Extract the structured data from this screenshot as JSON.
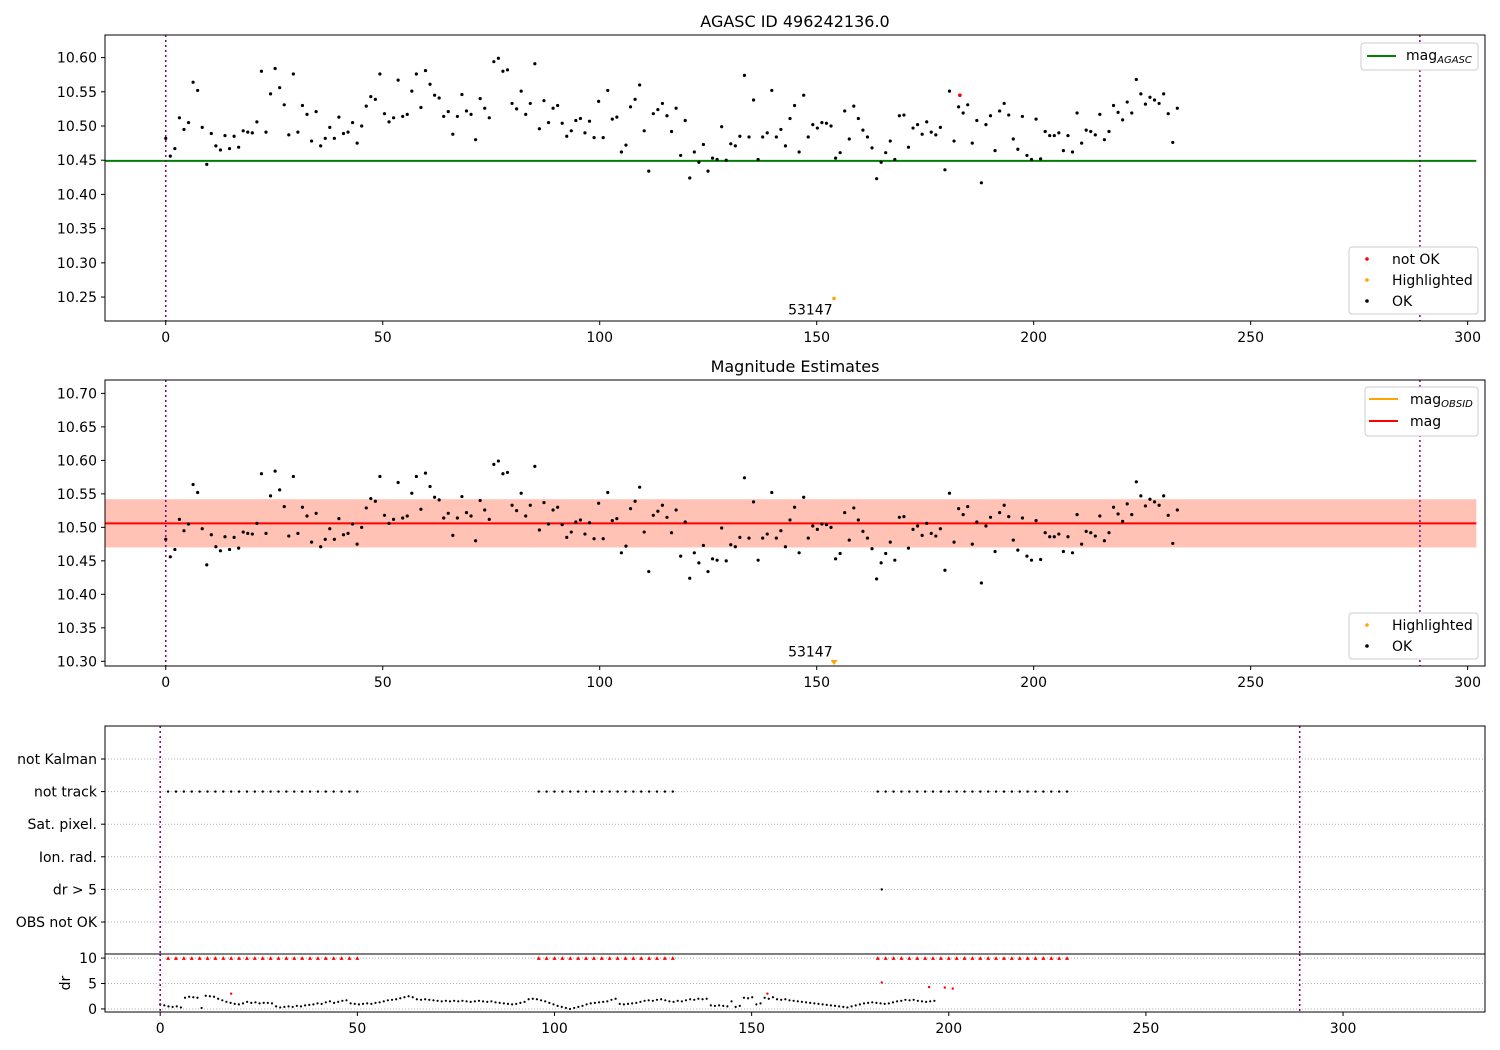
{
  "chart_data": [
    {
      "type": "scatter",
      "title": "AGASC ID 496242136.0",
      "xlim": [
        -14,
        304
      ],
      "ylim": [
        10.215,
        10.633
      ],
      "xticks": [
        0,
        50,
        100,
        150,
        200,
        250,
        300
      ],
      "yticks": [
        10.25,
        10.3,
        10.35,
        10.4,
        10.45,
        10.5,
        10.55,
        10.6
      ],
      "ytick_labels": [
        "10.25",
        "10.30",
        "10.35",
        "10.40",
        "10.45",
        "10.50",
        "10.55",
        "10.60"
      ],
      "vlines": [
        0,
        289
      ],
      "hline": {
        "y": 10.449,
        "x_range": [
          -14,
          304
        ],
        "color": "#008000"
      },
      "annotation": {
        "text": "53147",
        "x": 149,
        "y": 10.23
      },
      "legend_lines": [
        {
          "label": "mag",
          "sub": "AGASC",
          "color": "#008000"
        }
      ],
      "legend_points": [
        {
          "label": "not OK",
          "color": "#ff0000"
        },
        {
          "label": "Highlighted",
          "color": "#ffa500"
        },
        {
          "label": "OK",
          "color": "#000000"
        }
      ],
      "series": [
        {
          "name": "not OK",
          "color": "#ff0000",
          "points": [
            [
              183,
              10.545
            ]
          ]
        },
        {
          "name": "Highlighted",
          "color": "#ffa500",
          "points": [
            [
              154,
              10.248
            ]
          ]
        }
      ]
    },
    {
      "type": "scatter",
      "title": "Magnitude Estimates",
      "xlim": [
        -14,
        304
      ],
      "ylim": [
        10.293,
        10.72
      ],
      "xticks": [
        0,
        50,
        100,
        150,
        200,
        250,
        300
      ],
      "yticks": [
        10.3,
        10.35,
        10.4,
        10.45,
        10.5,
        10.55,
        10.6,
        10.65,
        10.7
      ],
      "ytick_labels": [
        "10.30",
        "10.35",
        "10.40",
        "10.45",
        "10.50",
        "10.55",
        "10.60",
        "10.65",
        "10.70"
      ],
      "vlines": [
        0,
        289
      ],
      "mag_line": {
        "y": 10.506,
        "color": "#ff0000"
      },
      "bands": [
        {
          "y0": 10.47,
          "y1": 10.542,
          "color": "#ffc0cb",
          "opacity": 0.5
        },
        {
          "y0": 10.47,
          "y1": 10.542,
          "color": "#ffa07a",
          "opacity": 0.45
        }
      ],
      "annotation": {
        "text": "53147",
        "x": 149,
        "y": 10.31
      },
      "highlight_marker": {
        "x": 154,
        "y": 10.299,
        "color": "#ffa500"
      },
      "legend_lines": [
        {
          "label": "mag",
          "sub": "OBSID",
          "color": "#ffa500"
        },
        {
          "label": "mag",
          "sub": "",
          "color": "#ff0000"
        }
      ],
      "legend_points": [
        {
          "label": "Highlighted",
          "color": "#ffa500"
        },
        {
          "label": "OK",
          "color": "#000000"
        }
      ]
    },
    {
      "type": "scatter",
      "title": "",
      "xlim": [
        -14,
        336
      ],
      "xticks": [
        0,
        50,
        100,
        150,
        200,
        250,
        300
      ],
      "vlines": [
        0,
        289
      ],
      "categories": [
        "not Kalman",
        "not track",
        "Sat. pixel.",
        "Ion. rad.",
        "dr > 5",
        "OBS not OK"
      ],
      "flag_points": {
        "not track": [
          [
            2,
            51
          ],
          [
            96,
            131
          ],
          [
            182,
            231
          ]
        ],
        "dr > 5": [
          183
        ]
      },
      "dr_panel": {
        "ylabel": "dr",
        "ylim": [
          -0.6,
          10.8
        ],
        "yticks": [
          0,
          5,
          10
        ],
        "ytick_labels": [
          "0",
          "5",
          "10"
        ],
        "capped_value": 10,
        "capped_ranges": [
          [
            2,
            51
          ],
          [
            96,
            131
          ],
          [
            182,
            231
          ]
        ],
        "red_points": [
          [
            18,
            3.0
          ],
          [
            154,
            3.0
          ],
          [
            183,
            5.2
          ],
          [
            195,
            4.3
          ],
          [
            199,
            4.2
          ],
          [
            201,
            4.0
          ]
        ]
      }
    }
  ],
  "mag_series": [
    10.482,
    10.456,
    10.467,
    10.512,
    10.495,
    10.505,
    10.564,
    10.552,
    10.498,
    10.444,
    10.489,
    10.471,
    10.465,
    10.486,
    10.467,
    10.485,
    10.469,
    10.493,
    10.491,
    10.49,
    10.506,
    10.58,
    10.491,
    10.547,
    10.584,
    10.556,
    10.531,
    10.487,
    10.576,
    10.491,
    10.53,
    10.517,
    10.478,
    10.521,
    10.471,
    10.482,
    10.498,
    10.482,
    10.513,
    10.489,
    10.491,
    10.505,
    10.475,
    10.5,
    10.529,
    10.543,
    10.539,
    10.576,
    10.518,
    10.506,
    10.512,
    10.567,
    10.514,
    10.517,
    10.551,
    10.576,
    10.527,
    10.581,
    10.561,
    10.545,
    10.541,
    10.514,
    10.521,
    10.488,
    10.514,
    10.546,
    10.522,
    10.517,
    10.48,
    10.54,
    10.526,
    10.512,
    10.594,
    10.599,
    10.58,
    10.582,
    10.533,
    10.525,
    10.551,
    10.517,
    10.533,
    10.591,
    10.496,
    10.537,
    10.505,
    10.526,
    10.53,
    10.504,
    10.485,
    10.493,
    10.508,
    10.511,
    10.49,
    10.507,
    10.483,
    10.536,
    10.483,
    10.552,
    10.51,
    10.513,
    10.462,
    10.472,
    10.528,
    10.539,
    10.56,
    10.493,
    10.434,
    10.518,
    10.524,
    10.533,
    10.515,
    10.492,
    10.526,
    10.457,
    10.508,
    10.424,
    10.462,
    10.447,
    10.473,
    10.434,
    10.453,
    10.451,
    10.499,
    10.45,
    10.474,
    10.471,
    10.485,
    10.574,
    10.484,
    10.538,
    10.451,
    10.484,
    10.49,
    10.552,
    10.484,
    10.495,
    10.471,
    10.511,
    10.53,
    10.462,
    10.545,
    10.484,
    10.502,
    10.497,
    10.505,
    10.504,
    10.5,
    10.453,
    10.461,
    10.522,
    10.481,
    10.529,
    10.511,
    10.494,
    10.484,
    10.468,
    10.423,
    10.447,
    10.461,
    10.478,
    10.451,
    10.515,
    10.516,
    10.469,
    10.497,
    10.502,
    10.488,
    10.506,
    10.491,
    10.487,
    10.498,
    10.436,
    10.551,
    10.478,
    10.528,
    10.519,
    10.531,
    10.475,
    10.508,
    10.417,
    10.502,
    10.515,
    10.464,
    10.522,
    10.533,
    10.516,
    10.481,
    10.466,
    10.514,
    10.457,
    10.451,
    10.51,
    10.452,
    10.492,
    10.486,
    10.486,
    10.49,
    10.464,
    10.486,
    10.462,
    10.519,
    10.475,
    10.494,
    10.492,
    10.487,
    10.517,
    10.48,
    10.492,
    10.53,
    10.52,
    10.509,
    10.535,
    10.519,
    10.568,
    10.547,
    10.532,
    10.542,
    10.538,
    10.533,
    10.547,
    10.518,
    10.476,
    10.526
  ],
  "dr_series": [
    0.9,
    0.7,
    0.5,
    0.4,
    0.5,
    0.3,
    2.2,
    2.4,
    2.3,
    2.2,
    0.2,
    2.6,
    2.5,
    2.4,
    2.0,
    1.7,
    1.4,
    1.2,
    1.0,
    0.9,
    1.1,
    1.4,
    1.2,
    1.3,
    1.1,
    1.2,
    1.2,
    1.1,
    0.5,
    0.3,
    0.4,
    0.5,
    0.4,
    0.6,
    0.5,
    0.7,
    0.8,
    0.9,
    1.1,
    1.0,
    1.3,
    1.5,
    1.2,
    1.4,
    1.6,
    1.7,
    1.1,
    1.0,
    0.9,
    1.0,
    1.1,
    1.0,
    1.2,
    1.3,
    1.5,
    1.7,
    1.8,
    1.9,
    2.1,
    2.3,
    2.5,
    2.3,
    1.9,
    1.8,
    1.9,
    1.8,
    1.7,
    1.6,
    1.5,
    1.6,
    1.5,
    1.6,
    1.5,
    1.6,
    1.5,
    1.4,
    1.5,
    1.6,
    1.5,
    1.4,
    1.5,
    1.3,
    1.2,
    1.1,
    1.0,
    0.9,
    1.0,
    1.2,
    1.4,
    1.9,
    2.0,
    1.9,
    1.7,
    1.5,
    1.2,
    0.9,
    0.6,
    0.4,
    0.2,
    0.0,
    0.2,
    0.4,
    0.6,
    0.9,
    1.1,
    1.2,
    1.3,
    1.4,
    1.5,
    1.8,
    2.0,
    1.0,
    0.9,
    1.0,
    1.1,
    1.2,
    1.4,
    1.6,
    1.7,
    1.6,
    1.8,
    1.9,
    1.7,
    1.5,
    1.4,
    1.6,
    1.5,
    1.7,
    1.9,
    1.8,
    2.0,
    1.9,
    2.0,
    0.7,
    0.6,
    0.7,
    0.6,
    0.5,
    1.5,
    0.4,
    0.6,
    2.2,
    2.1,
    2.3,
    0.9,
    1.1,
    2.2,
    2.0,
    2.3,
    1.9,
    1.8,
    1.9,
    1.7,
    1.6,
    1.5,
    1.4,
    1.3,
    1.2,
    1.1,
    1.0,
    0.9,
    0.8,
    0.7,
    0.6,
    0.5,
    0.4,
    0.3,
    0.5,
    0.7,
    0.9,
    1.1,
    1.2,
    1.3,
    1.2,
    1.1,
    1.0,
    1.1,
    1.3,
    1.5,
    1.6,
    1.8,
    1.7,
    1.8,
    1.6,
    1.5,
    1.4,
    1.5,
    1.6
  ]
}
